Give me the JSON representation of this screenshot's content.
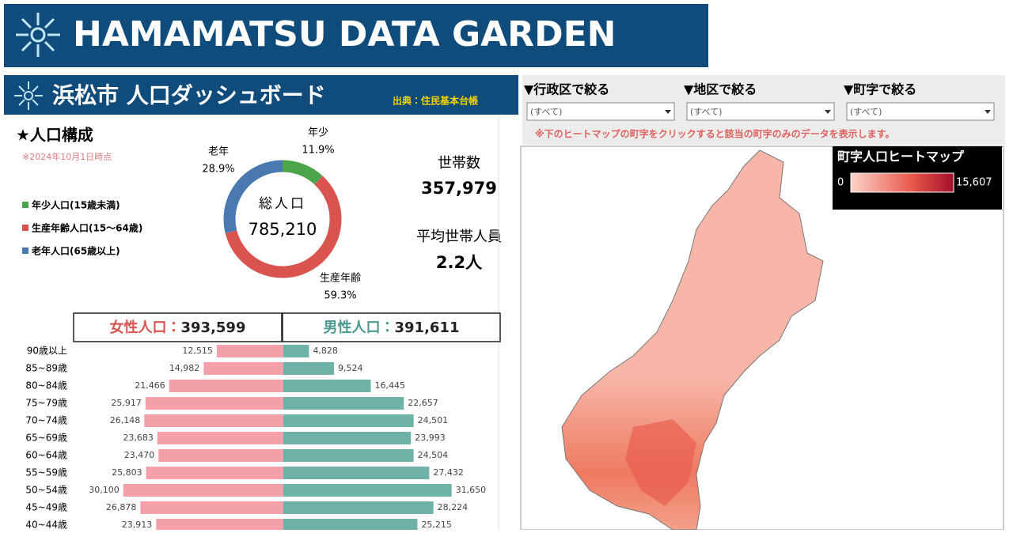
{
  "header": {
    "title": "HAMAMATSU DATA GARDEN"
  },
  "dashboard": {
    "title": "浜松市 人口ダッシュボード",
    "source": "出典：住民基本台帳",
    "section": "★人口構成",
    "as_of": "※2024年10月1日時点",
    "households_label": "世帯数",
    "households": "357,979",
    "avg_label": "平均世帯人員",
    "avg": "2.2人"
  },
  "filters": [
    {
      "label": "▼行政区で絞る",
      "value": "(すべて)"
    },
    {
      "label": "▼地区で絞る",
      "value": "(すべて)"
    },
    {
      "label": "▼町字で絞る",
      "value": "(すべて)"
    }
  ],
  "filter_note": "※下のヒートマップの町字をクリックすると該当の町字のみのデータを表示します。",
  "heatmap": {
    "title": "町字人口ヒートマップ",
    "min_label": "0",
    "max_label": "15,607"
  },
  "chart_data": [
    {
      "type": "pie",
      "center_label": "総人口",
      "center_value": "785,210",
      "categories": [
        "年少",
        "生産年齢",
        "老年"
      ],
      "values": [
        11.9,
        59.3,
        28.9
      ],
      "value_labels": [
        "11.9%",
        "59.3%",
        "28.9%"
      ],
      "colors": [
        "#4aa54a",
        "#d9534f",
        "#4a78b0"
      ],
      "legend": [
        "年少人口(15歳未満)",
        "生産年齢人口(15〜64歳)",
        "老年人口(65歳以上)"
      ]
    },
    {
      "type": "bar",
      "categories": [
        "90歳以上",
        "85~89歳",
        "80~84歳",
        "75~79歳",
        "70~74歳",
        "65~69歳",
        "60~64歳",
        "55~59歳",
        "50~54歳",
        "45~49歳",
        "40~44歳"
      ],
      "series": [
        {
          "name": "女性人口：",
          "total": "393,599",
          "color": "#f4a0ab",
          "text_color": "#d9534f",
          "values": [
            12515,
            14982,
            21466,
            25917,
            26148,
            23683,
            23470,
            25803,
            30100,
            26878,
            23913
          ],
          "value_labels": [
            "12,515",
            "14,982",
            "21,466",
            "25,917",
            "26,148",
            "23,683",
            "23,470",
            "25,803",
            "30,100",
            "26,878",
            "23,913"
          ]
        },
        {
          "name": "男性人口：",
          "total": "391,611",
          "color": "#6fb3a8",
          "text_color": "#4a9a8e",
          "values": [
            4828,
            9524,
            16445,
            22657,
            24501,
            23993,
            24504,
            27432,
            31650,
            28224,
            25215
          ],
          "value_labels": [
            "4,828",
            "9,524",
            "16,445",
            "22,657",
            "24,501",
            "23,993",
            "24,504",
            "27,432",
            "31,650",
            "28,224",
            "25,215"
          ]
        }
      ]
    }
  ]
}
